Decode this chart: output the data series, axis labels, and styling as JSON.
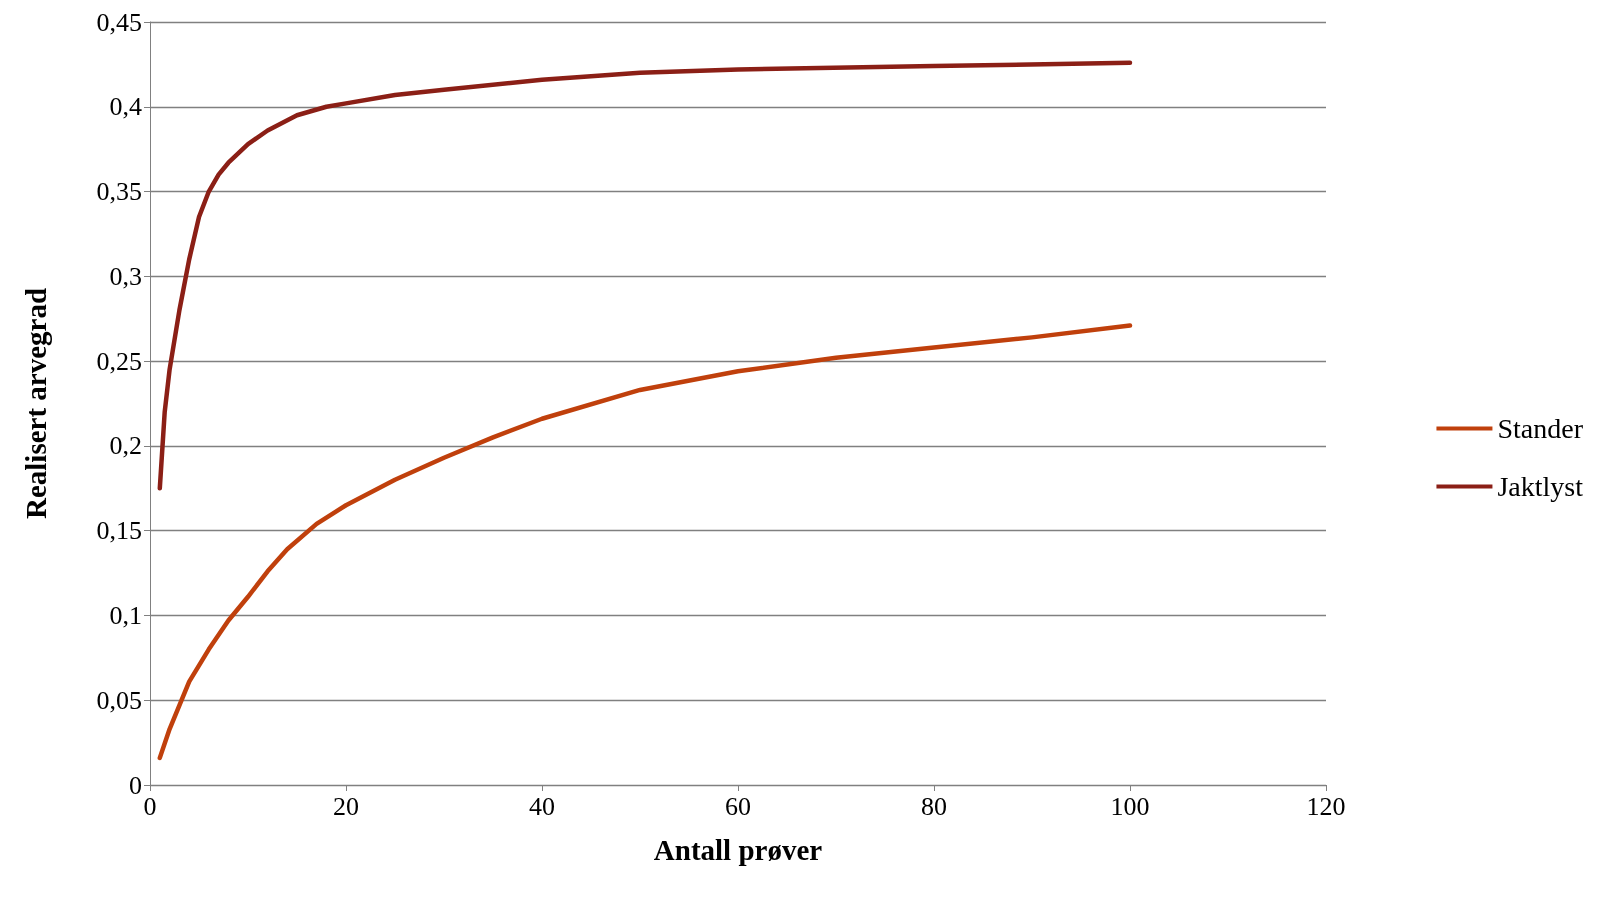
{
  "chart_data": {
    "type": "line",
    "xlabel": "Antall prøver",
    "ylabel": "Realisert arvegrad",
    "xlim": [
      0,
      120
    ],
    "xticks": [
      0,
      20,
      40,
      60,
      80,
      100,
      120
    ],
    "ylim": [
      0,
      0.45
    ],
    "yticks": [
      {
        "value": 0,
        "label": "0"
      },
      {
        "value": 0.05,
        "label": "0,05"
      },
      {
        "value": 0.1,
        "label": "0,1"
      },
      {
        "value": 0.15,
        "label": "0,15"
      },
      {
        "value": 0.2,
        "label": "0,2"
      },
      {
        "value": 0.25,
        "label": "0,25"
      },
      {
        "value": 0.3,
        "label": "0,3"
      },
      {
        "value": 0.35,
        "label": "0,35"
      },
      {
        "value": 0.4,
        "label": "0,4"
      },
      {
        "value": 0.45,
        "label": "0,45"
      }
    ],
    "grid": "y",
    "legend": "right",
    "marker": "none",
    "line_style": "solid",
    "series": [
      {
        "name": "Stander",
        "color": "#c0400c",
        "x": [
          1,
          2,
          4,
          6,
          8,
          10,
          12,
          14,
          17,
          20,
          25,
          30,
          35,
          40,
          50,
          60,
          70,
          80,
          90,
          100
        ],
        "values": [
          0.016,
          0.033,
          0.061,
          0.08,
          0.097,
          0.111,
          0.126,
          0.139,
          0.154,
          0.165,
          0.18,
          0.193,
          0.205,
          0.216,
          0.233,
          0.244,
          0.252,
          0.258,
          0.264,
          0.271
        ]
      },
      {
        "name": "Jaktlyst",
        "color": "#8b1f16",
        "x": [
          1,
          1.5,
          2,
          3,
          4,
          5,
          6,
          7,
          8,
          10,
          12,
          15,
          18,
          20,
          25,
          30,
          40,
          50,
          60,
          80,
          100
        ],
        "values": [
          0.175,
          0.22,
          0.245,
          0.28,
          0.31,
          0.335,
          0.35,
          0.36,
          0.367,
          0.378,
          0.386,
          0.395,
          0.4,
          0.402,
          0.407,
          0.41,
          0.416,
          0.42,
          0.422,
          0.424,
          0.426
        ]
      }
    ]
  }
}
